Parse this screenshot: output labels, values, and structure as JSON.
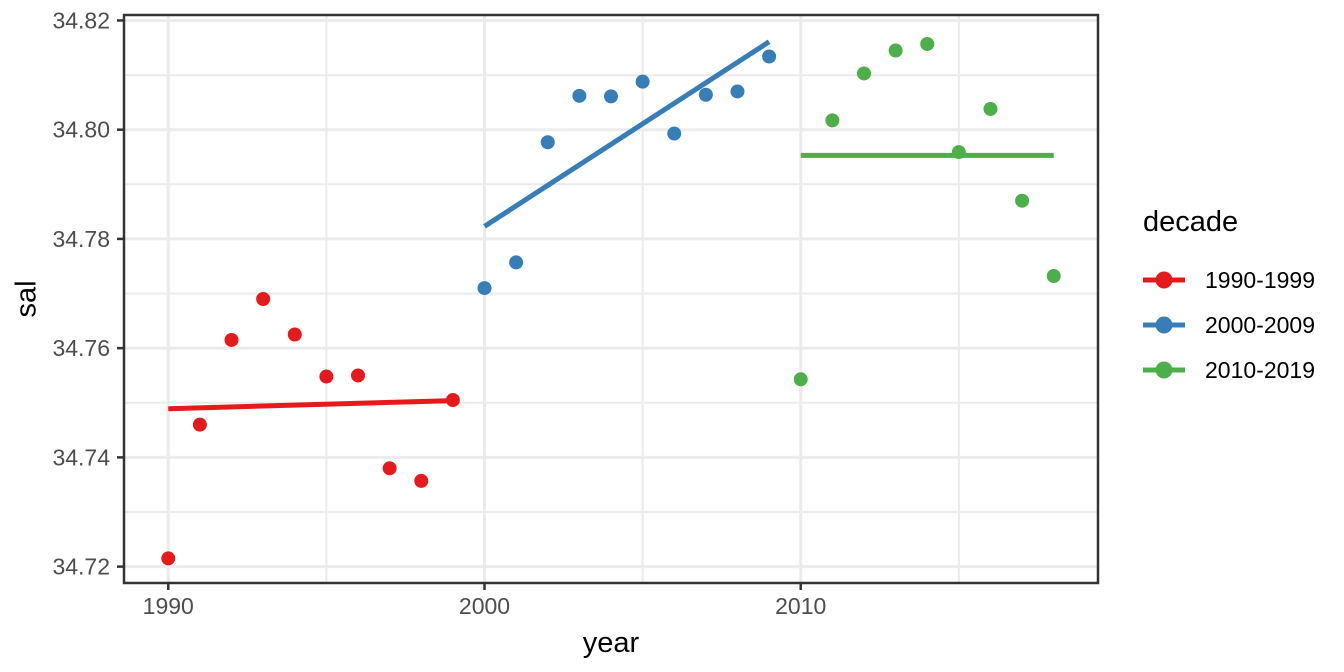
{
  "chart_data": {
    "type": "scatter",
    "title": "",
    "xlabel": "year",
    "ylabel": "sal",
    "legend_title": "decade",
    "legend_position": "right",
    "grid": true,
    "xlim": [
      1988.6,
      2019.4
    ],
    "ylim": [
      34.717,
      34.821
    ],
    "x_ticks": [
      1990,
      2000,
      2010
    ],
    "x_tick_labels": [
      "1990",
      "2000",
      "2010"
    ],
    "x_minor_gridlines": [
      1995,
      2005,
      2015
    ],
    "y_ticks": [
      34.72,
      34.74,
      34.76,
      34.78,
      34.8,
      34.82
    ],
    "y_tick_labels": [
      "34.72",
      "34.74",
      "34.76",
      "34.78",
      "34.80",
      "34.82"
    ],
    "y_minor_gridlines": [
      34.73,
      34.75,
      34.77,
      34.79,
      34.81
    ],
    "series": [
      {
        "name": "1990-1999",
        "color": "#E41A1C",
        "x": [
          1990,
          1991,
          1992,
          1993,
          1994,
          1995,
          1996,
          1997,
          1998,
          1999
        ],
        "y": [
          34.7215,
          34.746,
          34.7615,
          34.769,
          34.7625,
          34.7548,
          34.755,
          34.738,
          34.7357,
          34.7505
        ],
        "trend": {
          "x": [
            1990,
            1999
          ],
          "y": [
            34.7489,
            34.7504
          ]
        }
      },
      {
        "name": "2000-2009",
        "color": "#377EB8",
        "x": [
          2000,
          2001,
          2002,
          2003,
          2004,
          2005,
          2006,
          2007,
          2008,
          2009
        ],
        "y": [
          34.771,
          34.7757,
          34.7977,
          34.8062,
          34.8061,
          34.8088,
          34.7993,
          34.8064,
          34.807,
          34.8134
        ],
        "trend": {
          "x": [
            2000,
            2009
          ],
          "y": [
            34.7823,
            34.8161
          ]
        }
      },
      {
        "name": "2010-2019",
        "color": "#4DAF4A",
        "x": [
          2010,
          2011,
          2012,
          2013,
          2014,
          2015,
          2016,
          2017,
          2018
        ],
        "y": [
          34.7543,
          34.8017,
          34.8103,
          34.8145,
          34.8157,
          34.7959,
          34.8038,
          34.787,
          34.7732
        ],
        "trend": {
          "x": [
            2010,
            2018
          ],
          "y": [
            34.7953,
            34.7953
          ]
        }
      }
    ],
    "style": {
      "background": "#FFFFFF",
      "panel_background": "#FFFFFF",
      "grid_color": "#EBEBEB",
      "panel_border_color": "#333333",
      "tick_color": "#333333",
      "tick_label_color": "#4D4D4D",
      "axis_title_color": "#000000"
    }
  }
}
